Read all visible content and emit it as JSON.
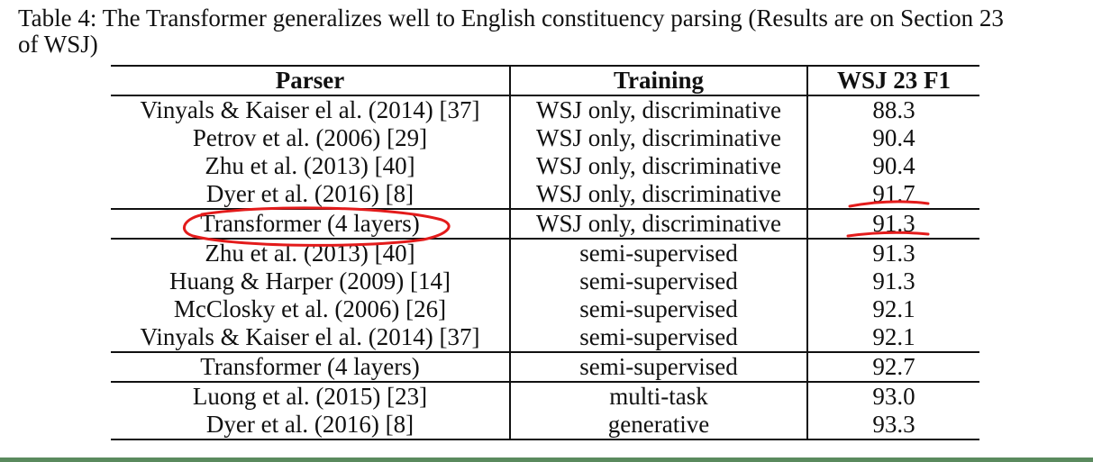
{
  "caption": {
    "line1": "Table 4: The Transformer generalizes well to English constituency parsing (Results are on Section 23",
    "line2": "of WSJ)"
  },
  "table": {
    "headers": [
      "Parser",
      "Training",
      "WSJ 23 F1"
    ],
    "rows": [
      {
        "parser": "Vinyals & Kaiser el al. (2014) [37]",
        "training": "WSJ only, discriminative",
        "f1": "88.3"
      },
      {
        "parser": "Petrov et al. (2006) [29]",
        "training": "WSJ only, discriminative",
        "f1": "90.4"
      },
      {
        "parser": "Zhu et al. (2013) [40]",
        "training": "WSJ only, discriminative",
        "f1": "90.4"
      },
      {
        "parser": "Dyer et al. (2016) [8]",
        "training": "WSJ only, discriminative",
        "f1": "91.7"
      },
      {
        "parser": "Transformer (4 layers)",
        "training": "WSJ only, discriminative",
        "f1": "91.3"
      },
      {
        "parser": "Zhu et al. (2013) [40]",
        "training": "semi-supervised",
        "f1": "91.3"
      },
      {
        "parser": "Huang & Harper (2009) [14]",
        "training": "semi-supervised",
        "f1": "91.3"
      },
      {
        "parser": "McClosky et al. (2006) [26]",
        "training": "semi-supervised",
        "f1": "92.1"
      },
      {
        "parser": "Vinyals & Kaiser el al. (2014) [37]",
        "training": "semi-supervised",
        "f1": "92.1"
      },
      {
        "parser": "Transformer (4 layers)",
        "training": "semi-supervised",
        "f1": "92.7"
      },
      {
        "parser": "Luong et al. (2015) [23]",
        "training": "multi-task",
        "f1": "93.0"
      },
      {
        "parser": "Dyer et al. (2016) [8]",
        "training": "generative",
        "f1": "93.3"
      }
    ]
  },
  "annotation": {
    "color": "#e31b1b"
  },
  "colors": {
    "bottom_bar": "#5a8a5e"
  }
}
